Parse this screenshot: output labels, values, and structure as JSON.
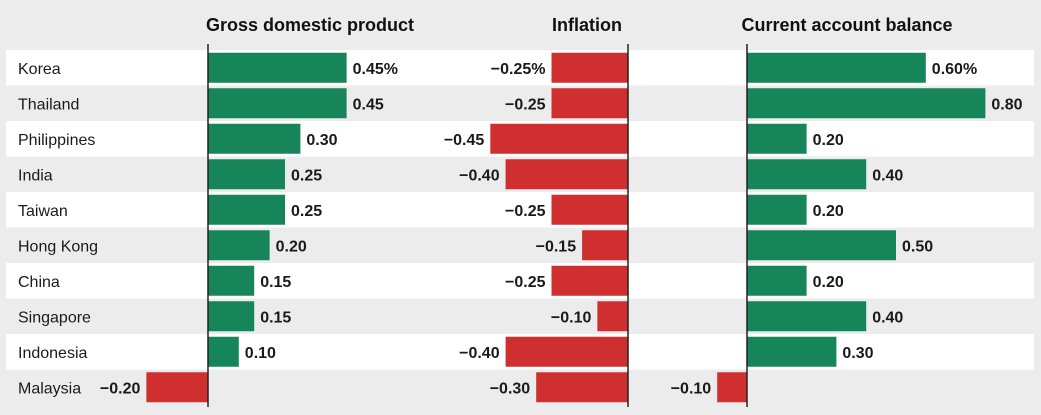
{
  "colors": {
    "positive": "#16855a",
    "negative": "#cf2f2f",
    "band": "#ffffff",
    "background": "#ececec"
  },
  "chart_data": {
    "type": "bar",
    "orientation": "horizontal",
    "categories": [
      "Korea",
      "Thailand",
      "Philippines",
      "India",
      "Taiwan",
      "Hong Kong",
      "China",
      "Singapore",
      "Indonesia",
      "Malaysia"
    ],
    "panels": [
      {
        "title": "Gross domestic product",
        "values": [
          0.45,
          0.45,
          0.3,
          0.25,
          0.25,
          0.2,
          0.15,
          0.15,
          0.1,
          -0.2
        ],
        "labels": [
          "0.45%",
          "0.45",
          "0.30",
          "0.25",
          "0.25",
          "0.20",
          "0.15",
          "0.15",
          "0.10",
          "−0.20"
        ],
        "xlim": [
          -0.2,
          0.45
        ]
      },
      {
        "title": "Inflation",
        "values": [
          -0.25,
          -0.25,
          -0.45,
          -0.4,
          -0.25,
          -0.15,
          -0.25,
          -0.1,
          -0.4,
          -0.3
        ],
        "labels": [
          "−0.25%",
          "−0.25",
          "−0.45",
          "−0.40",
          "−0.25",
          "−0.15",
          "−0.25",
          "−0.10",
          "−0.40",
          "−0.30"
        ],
        "xlim": [
          -0.45,
          0
        ]
      },
      {
        "title": "Current account balance",
        "values": [
          0.6,
          0.8,
          0.2,
          0.4,
          0.2,
          0.5,
          0.2,
          0.4,
          0.3,
          -0.1
        ],
        "labels": [
          "0.60%",
          "0.80",
          "0.20",
          "0.40",
          "0.20",
          "0.50",
          "0.20",
          "0.40",
          "0.30",
          "−0.10"
        ],
        "xlim": [
          -0.1,
          0.8
        ]
      }
    ],
    "grid": false,
    "legend": "none"
  }
}
